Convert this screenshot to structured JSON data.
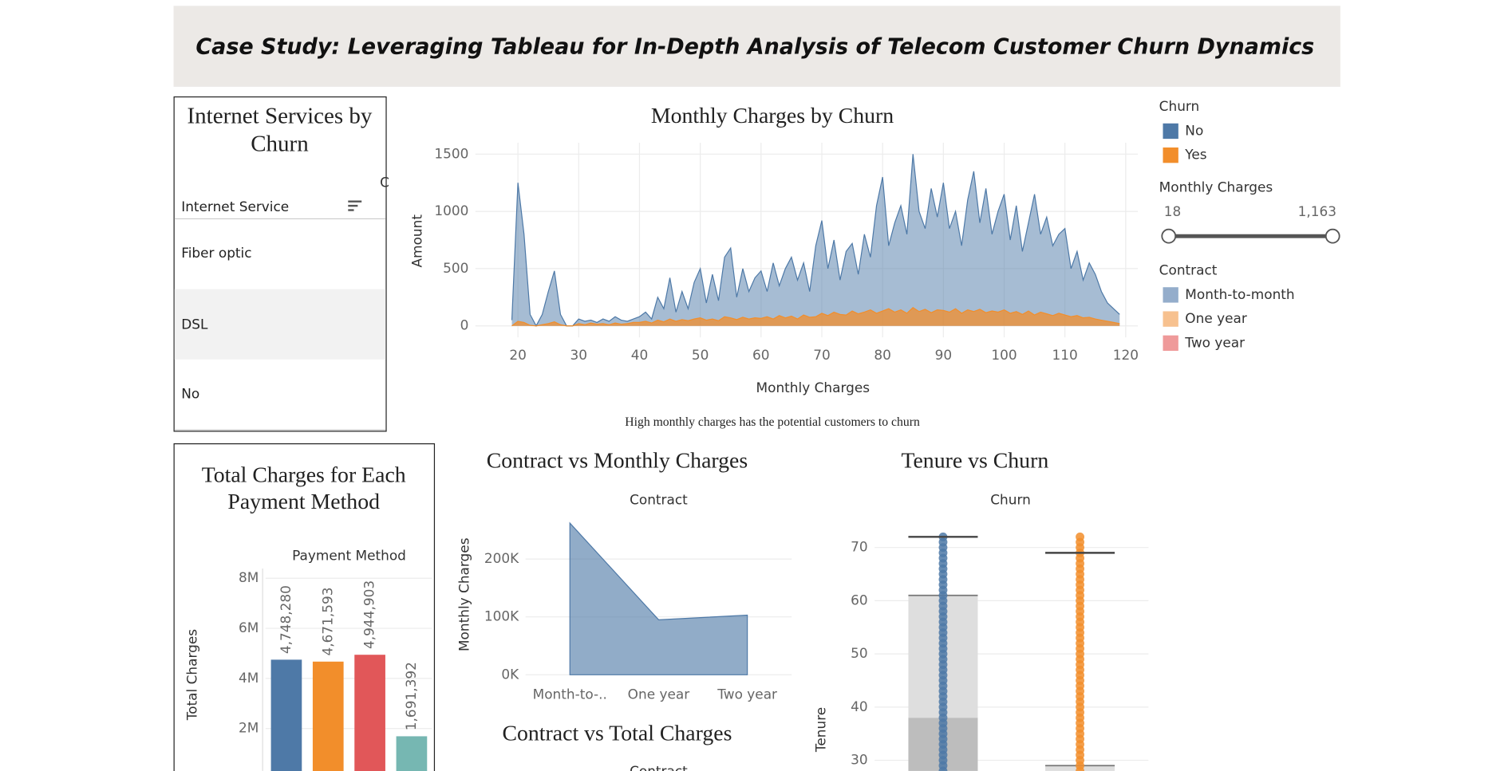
{
  "header": {
    "title": "Case Study: Leveraging Tableau for In-Depth Analysis of Telecom Customer Churn Dynamics"
  },
  "internet_services": {
    "title": "Internet Services by Churn",
    "column_header": "Internet Service",
    "cut_column": "C",
    "rows": [
      "Fiber optic",
      "DSL",
      "No"
    ]
  },
  "chart_data": [
    {
      "type": "area",
      "title": "Monthly Charges by Churn",
      "x_label": "Monthly Charges",
      "y_label": "Amount",
      "caption": "High monthly charges has the potential customers to churn",
      "legend_title": "Churn",
      "x": [
        19,
        20,
        21,
        22,
        23,
        24,
        25,
        26,
        27,
        28,
        29,
        30,
        31,
        32,
        33,
        34,
        35,
        36,
        37,
        38,
        39,
        40,
        41,
        42,
        43,
        44,
        45,
        46,
        47,
        48,
        49,
        50,
        51,
        52,
        53,
        54,
        55,
        56,
        57,
        58,
        59,
        60,
        61,
        62,
        63,
        64,
        65,
        66,
        67,
        68,
        69,
        70,
        71,
        72,
        73,
        74,
        75,
        76,
        77,
        78,
        79,
        80,
        81,
        82,
        83,
        84,
        85,
        86,
        87,
        88,
        89,
        90,
        91,
        92,
        93,
        94,
        95,
        96,
        97,
        98,
        99,
        100,
        101,
        102,
        103,
        104,
        105,
        106,
        107,
        108,
        109,
        110,
        111,
        112,
        113,
        114,
        115,
        116,
        117,
        118,
        119
      ],
      "series": [
        {
          "name": "No",
          "color": "#4e79a7",
          "values": [
            50,
            1250,
            800,
            100,
            0,
            100,
            300,
            480,
            100,
            0,
            0,
            60,
            40,
            50,
            30,
            60,
            40,
            80,
            50,
            40,
            60,
            80,
            120,
            60,
            250,
            150,
            420,
            120,
            300,
            150,
            380,
            500,
            200,
            450,
            220,
            600,
            680,
            250,
            500,
            300,
            420,
            480,
            300,
            550,
            350,
            500,
            600,
            400,
            550,
            300,
            700,
            920,
            500,
            750,
            400,
            650,
            720,
            450,
            800,
            600,
            1050,
            1300,
            700,
            900,
            1050,
            800,
            1500,
            1000,
            850,
            1200,
            950,
            1250,
            850,
            1000,
            700,
            1100,
            1350,
            900,
            1200,
            800,
            1000,
            1150,
            750,
            1050,
            650,
            900,
            1150,
            800,
            950,
            700,
            800,
            850,
            500,
            650,
            400,
            550,
            450,
            300,
            200,
            150,
            100
          ]
        },
        {
          "name": "Yes",
          "color": "#f28e2b",
          "values": [
            0,
            40,
            30,
            5,
            0,
            10,
            20,
            35,
            10,
            0,
            0,
            20,
            10,
            25,
            15,
            20,
            10,
            25,
            15,
            20,
            30,
            30,
            40,
            25,
            50,
            35,
            60,
            40,
            55,
            45,
            60,
            70,
            50,
            60,
            45,
            80,
            70,
            55,
            75,
            60,
            70,
            65,
            80,
            60,
            90,
            70,
            85,
            60,
            95,
            75,
            80,
            110,
            90,
            120,
            100,
            95,
            130,
            105,
            120,
            140,
            110,
            130,
            150,
            120,
            140,
            110,
            160,
            125,
            145,
            115,
            140,
            135,
            120,
            150,
            110,
            140,
            125,
            145,
            115,
            130,
            120,
            140,
            110,
            125,
            100,
            130,
            95,
            120,
            105,
            90,
            110,
            95,
            80,
            90,
            70,
            75,
            60,
            50,
            40,
            30,
            20
          ]
        }
      ],
      "xlim": [
        13,
        122
      ],
      "ylim": [
        -100,
        1600
      ],
      "xticks": [
        20,
        30,
        40,
        50,
        60,
        70,
        80,
        90,
        100,
        110,
        120
      ],
      "yticks": [
        0,
        500,
        1000,
        1500
      ],
      "grid": true,
      "filter": {
        "title": "Monthly Charges",
        "min": 18,
        "max": {
          "value": 1163,
          "label": "1,163"
        }
      },
      "contract_legend": {
        "title": "Contract",
        "items": [
          {
            "name": "Month-to-month",
            "color": "#94adcb"
          },
          {
            "name": "One year",
            "color": "#f7c18f"
          },
          {
            "name": "Two year",
            "color": "#ef9a9a"
          }
        ]
      }
    },
    {
      "type": "bar",
      "title": "Total Charges for Each Payment Method",
      "header": "Payment Method",
      "y_label": "Total Charges",
      "categories": [
        null,
        null,
        null,
        null
      ],
      "values": [
        4748280,
        4671593,
        4944903,
        1691392
      ],
      "value_labels": [
        "4,748,280",
        "4,671,593",
        "4,944,903",
        "1,691,392"
      ],
      "colors": [
        "#4e79a7",
        "#f28e2b",
        "#e15759",
        "#76b7b2"
      ],
      "ylim": [
        0,
        8000000
      ],
      "yticks": [
        {
          "value": 0,
          "label": "0M"
        },
        {
          "value": 2000000,
          "label": "2M"
        },
        {
          "value": 4000000,
          "label": "4M"
        },
        {
          "value": 6000000,
          "label": "6M"
        },
        {
          "value": 8000000,
          "label": "8M"
        }
      ],
      "grid": true
    },
    {
      "type": "area",
      "title": "Contract vs Monthly Charges",
      "header": "Contract",
      "y_label": "Monthly Charges",
      "categories": [
        "Month-to-..",
        "One year",
        "Two year"
      ],
      "values": [
        262000,
        95000,
        103000
      ],
      "color": "#4e79a7",
      "ylim": [
        -8000,
        275000
      ],
      "yticks": [
        {
          "value": 0,
          "label": "0K"
        },
        {
          "value": 100000,
          "label": "100K"
        },
        {
          "value": 200000,
          "label": "200K"
        }
      ],
      "grid": true
    },
    {
      "type": "area",
      "title": "Contract vs Total Charges",
      "header": "Contract"
    },
    {
      "type": "box",
      "title": "Tenure vs Churn",
      "header": "Churn",
      "y_label": "Tenure",
      "ylim": [
        28,
        76
      ],
      "yticks": [
        30,
        40,
        50,
        60,
        70
      ],
      "grid": true,
      "series": [
        {
          "color": "#4e79a7",
          "upper_whisker": 72,
          "q3": 61,
          "median": 38,
          "points": [
            28,
            29,
            30,
            31,
            32,
            33,
            34,
            35,
            36,
            37,
            38,
            39,
            40,
            41,
            42,
            43,
            44,
            45,
            46,
            47,
            48,
            49,
            50,
            51,
            52,
            53,
            54,
            55,
            56,
            57,
            58,
            59,
            60,
            61,
            62,
            63,
            64,
            65,
            66,
            67,
            68,
            69,
            70,
            71,
            72
          ]
        },
        {
          "color": "#f28e2b",
          "upper_whisker": 69,
          "q3": 29,
          "points": [
            28,
            29,
            30,
            31,
            32,
            33,
            34,
            35,
            36,
            37,
            38,
            39,
            40,
            41,
            42,
            43,
            44,
            45,
            46,
            47,
            48,
            49,
            50,
            51,
            52,
            53,
            54,
            55,
            56,
            57,
            58,
            59,
            60,
            61,
            62,
            63,
            64,
            65,
            66,
            67,
            68,
            69,
            70,
            71,
            72
          ]
        }
      ]
    }
  ]
}
